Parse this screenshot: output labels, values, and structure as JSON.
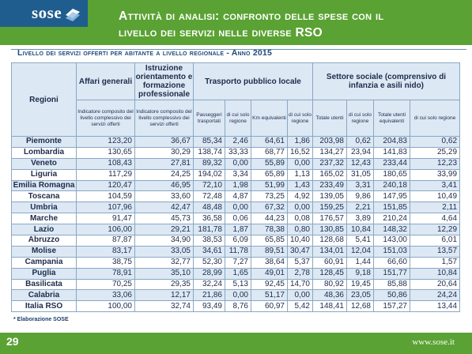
{
  "header": {
    "logo_text": "sose",
    "title_line1": "Attività di analisi: confronto delle spese con il",
    "title_line2": "livello dei servizi nelle diverse RSO"
  },
  "subtitle": "Livello dei servizi offerti per abitante a livello regionale - Anno 2015",
  "table": {
    "col_regioni": "Regioni",
    "group_affari": "Affari generali",
    "group_istruzione": "Istruzione orientamento e formazione professionale",
    "group_trasporto": "Trasporto pubblico locale",
    "group_settore": "Settore sociale (comprensivo di infanzia e asili nido)",
    "sub_indicatore1": "Indicatore composito del livello complessivo dei servizi offerti",
    "sub_indicatore2": "Indicatore composito del livello complessivo dei servizi offerti",
    "sub_passeggeri": "Passeggeri trasportati",
    "sub_regione1": "di cui solo regione",
    "sub_km": "Km equivalenti",
    "sub_regione2": "di cui solo regione",
    "sub_totale_utenti": "Totale utenti",
    "sub_regione3": "di cui solo regione",
    "sub_totale_equiv": "Totale utenti equivalenti",
    "sub_regione4": "di cui solo regione",
    "rows": [
      [
        "Piemonte",
        "123,20",
        "36,67",
        "85,34",
        "2,46",
        "64,61",
        "1,86",
        "203,98",
        "0,62",
        "204,83",
        "0,62"
      ],
      [
        "Lombardia",
        "130,65",
        "30,29",
        "138,74",
        "33,33",
        "68,77",
        "16,52",
        "134,27",
        "23,94",
        "141,83",
        "25,29"
      ],
      [
        "Veneto",
        "108,43",
        "27,81",
        "89,32",
        "0,00",
        "55,89",
        "0,00",
        "237,32",
        "12,43",
        "233,44",
        "12,23"
      ],
      [
        "Liguria",
        "117,29",
        "24,25",
        "194,02",
        "3,34",
        "65,89",
        "1,13",
        "165,02",
        "31,05",
        "180,65",
        "33,99"
      ],
      [
        "Emilia Romagna",
        "120,47",
        "46,95",
        "72,10",
        "1,98",
        "51,99",
        "1,43",
        "233,49",
        "3,31",
        "240,18",
        "3,41"
      ],
      [
        "Toscana",
        "104,59",
        "33,60",
        "72,48",
        "4,87",
        "73,25",
        "4,92",
        "139,05",
        "9,86",
        "147,95",
        "10,49"
      ],
      [
        "Umbria",
        "107,96",
        "42,47",
        "48,48",
        "0,00",
        "67,32",
        "0,00",
        "159,25",
        "2,21",
        "151,85",
        "2,11"
      ],
      [
        "Marche",
        "91,47",
        "45,73",
        "36,58",
        "0,06",
        "44,23",
        "0,08",
        "176,57",
        "3,89",
        "210,24",
        "4,64"
      ],
      [
        "Lazio",
        "106,00",
        "29,21",
        "181,78",
        "1,87",
        "78,38",
        "0,80",
        "130,85",
        "10,84",
        "148,32",
        "12,29"
      ],
      [
        "Abruzzo",
        "87,87",
        "34,90",
        "38,53",
        "6,09",
        "65,85",
        "10,40",
        "128,68",
        "5,41",
        "143,00",
        "6,01"
      ],
      [
        "Molise",
        "83,17",
        "33,05",
        "34,61",
        "11,78",
        "89,51",
        "30,47",
        "134,01",
        "12,04",
        "151,03",
        "13,57"
      ],
      [
        "Campania",
        "38,75",
        "32,77",
        "52,30",
        "7,27",
        "38,64",
        "5,37",
        "60,91",
        "1,44",
        "66,60",
        "1,57"
      ],
      [
        "Puglia",
        "78,91",
        "35,10",
        "28,99",
        "1,65",
        "49,01",
        "2,78",
        "128,45",
        "9,18",
        "151,77",
        "10,84"
      ],
      [
        "Basilicata",
        "70,25",
        "29,35",
        "32,24",
        "5,13",
        "92,45",
        "14,70",
        "80,92",
        "19,45",
        "85,88",
        "20,64"
      ],
      [
        "Calabria",
        "33,06",
        "12,17",
        "21,86",
        "0,00",
        "51,17",
        "0,00",
        "48,36",
        "23,05",
        "50,86",
        "24,24"
      ],
      [
        "Italia RSO",
        "100,00",
        "32,74",
        "93,49",
        "8,76",
        "60,97",
        "5,42",
        "148,41",
        "12,68",
        "157,27",
        "13,44"
      ]
    ]
  },
  "note": "* Elaborazione SOSE",
  "footer": {
    "page_number": "29",
    "site": "www.sose.it"
  },
  "colors": {
    "header_green": "#5aa233",
    "logo_blue": "#1f5d8e",
    "row_shade": "#dce8f4",
    "border": "#8aa7c2",
    "text_dark": "#1d2b4a"
  }
}
